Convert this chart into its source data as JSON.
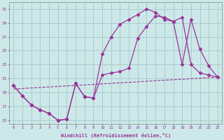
{
  "xlabel": "Windchill (Refroidissement éolien,°C)",
  "xlim": [
    -0.5,
    23.5
  ],
  "ylim": [
    14.5,
    32
  ],
  "yticks": [
    15,
    17,
    19,
    21,
    23,
    25,
    27,
    29,
    31
  ],
  "xticks": [
    0,
    1,
    2,
    3,
    4,
    5,
    6,
    7,
    8,
    9,
    10,
    11,
    12,
    13,
    14,
    15,
    16,
    17,
    18,
    19,
    20,
    21,
    22,
    23
  ],
  "line_color": "#993399",
  "bg_color": "#cce8e8",
  "grid_color": "#aacccc",
  "line1_x": [
    0,
    1,
    2,
    3,
    4,
    5,
    6,
    7,
    8,
    9,
    10,
    11,
    12,
    13,
    14,
    15,
    16,
    17,
    18,
    19,
    20,
    21,
    22,
    23
  ],
  "line1_y": [
    20.0,
    18.5,
    17.2,
    16.5,
    16.0,
    15.0,
    15.2,
    20.3,
    18.4,
    18.2,
    24.5,
    27.0,
    28.8,
    29.5,
    30.2,
    31.0,
    30.5,
    29.5,
    29.2,
    23.0,
    29.5,
    25.2,
    22.8,
    21.2
  ],
  "line2_x": [
    0,
    1,
    2,
    3,
    4,
    5,
    6,
    7,
    8,
    9,
    10,
    11,
    12,
    13,
    14,
    15,
    16,
    17,
    18,
    19,
    20,
    21,
    22,
    23
  ],
  "line2_y": [
    20.0,
    18.5,
    17.2,
    16.5,
    16.0,
    15.0,
    15.2,
    20.3,
    18.4,
    18.2,
    21.5,
    21.8,
    22.0,
    22.5,
    26.8,
    28.5,
    30.0,
    29.8,
    29.2,
    29.8,
    23.0,
    21.8,
    21.5,
    21.2
  ],
  "line3_x": [
    0,
    23
  ],
  "line3_y": [
    19.5,
    21.2
  ],
  "marker": "D",
  "markersize": 2.5
}
